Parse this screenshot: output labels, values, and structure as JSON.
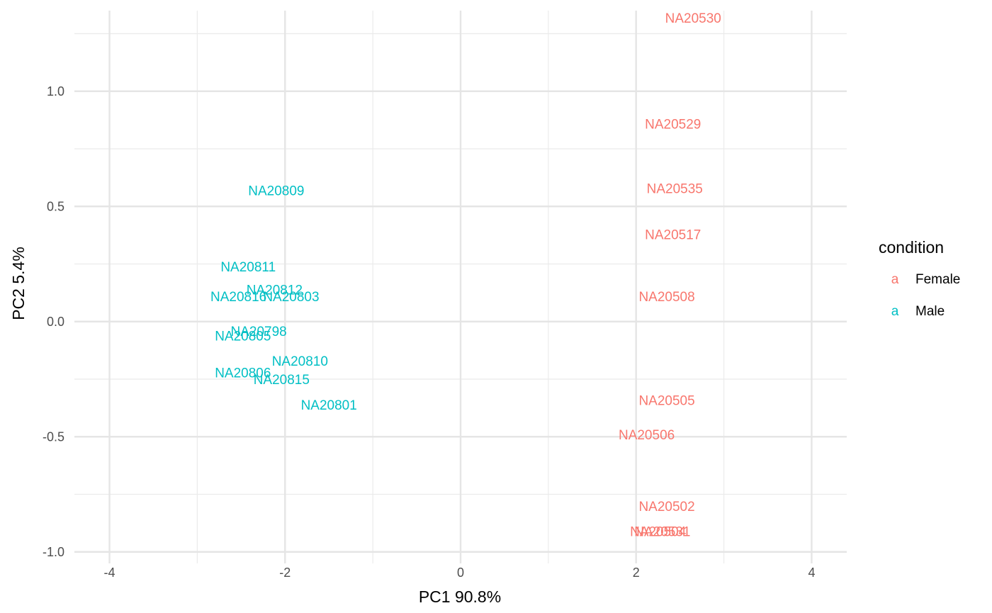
{
  "chart_data": {
    "type": "scatter",
    "xlabel": "PC1 90.8%",
    "ylabel": "PC2 5.4%",
    "xlim": [
      -4.4,
      4.4
    ],
    "ylim": [
      -1.05,
      1.35
    ],
    "x_major": [
      -4,
      -2,
      0,
      2,
      4
    ],
    "x_minor": [
      -3,
      -1,
      1,
      3
    ],
    "y_major": [
      -1.0,
      -0.5,
      0.0,
      0.5,
      1.0
    ],
    "y_minor": [
      -0.75,
      -0.25,
      0.25,
      0.75,
      1.25
    ],
    "x_tick_labels": [
      "-4",
      "-2",
      "0",
      "2",
      "4"
    ],
    "y_tick_labels": [
      "-1.0",
      "-0.5",
      "0.0",
      "0.5",
      "1.0"
    ],
    "grid": true,
    "legend": {
      "title": "condition",
      "position": "right",
      "key_glyph": "a",
      "entries": [
        {
          "label": "Female",
          "color": "#F8766D"
        },
        {
          "label": "Male",
          "color": "#00BFC4"
        }
      ]
    },
    "series": [
      {
        "name": "Female",
        "color": "#F8766D",
        "points": [
          {
            "label": "NA20530",
            "x": 2.65,
            "y": 1.32
          },
          {
            "label": "NA20529",
            "x": 2.42,
            "y": 0.86
          },
          {
            "label": "NA20535",
            "x": 2.44,
            "y": 0.58
          },
          {
            "label": "NA20517",
            "x": 2.42,
            "y": 0.38
          },
          {
            "label": "NA20508",
            "x": 2.35,
            "y": 0.11
          },
          {
            "label": "NA20505",
            "x": 2.35,
            "y": -0.34
          },
          {
            "label": "NA20506",
            "x": 2.12,
            "y": -0.49
          },
          {
            "label": "NA20502",
            "x": 2.35,
            "y": -0.8
          },
          {
            "label": "NA20504",
            "x": 2.25,
            "y": -0.91
          },
          {
            "label": "NA20531",
            "x": 2.3,
            "y": -0.91
          }
        ]
      },
      {
        "name": "Male",
        "color": "#00BFC4",
        "points": [
          {
            "label": "NA20809",
            "x": -2.1,
            "y": 0.57
          },
          {
            "label": "NA20811",
            "x": -2.42,
            "y": 0.24
          },
          {
            "label": "NA20812",
            "x": -2.12,
            "y": 0.14
          },
          {
            "label": "NA20816",
            "x": -2.53,
            "y": 0.11
          },
          {
            "label": "NA20803",
            "x": -1.93,
            "y": 0.11
          },
          {
            "label": "NA20798",
            "x": -2.3,
            "y": -0.04
          },
          {
            "label": "NA20805",
            "x": -2.48,
            "y": -0.06
          },
          {
            "label": "NA20810",
            "x": -1.83,
            "y": -0.17
          },
          {
            "label": "NA20806",
            "x": -2.48,
            "y": -0.22
          },
          {
            "label": "NA20815",
            "x": -2.04,
            "y": -0.25
          },
          {
            "label": "NA20801",
            "x": -1.5,
            "y": -0.36
          }
        ]
      }
    ]
  }
}
